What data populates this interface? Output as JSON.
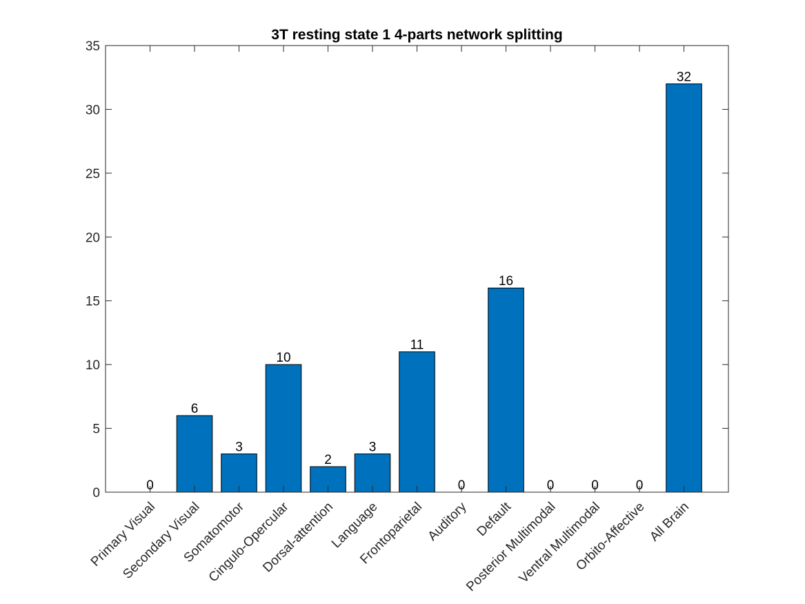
{
  "chart_data": {
    "type": "bar",
    "title": "3T resting state 1 4-parts network splitting",
    "xlabel": "",
    "ylabel": "",
    "categories": [
      "Primary Visual",
      "Secondary Visual",
      "Somatomotor",
      "Cingulo-Opercular",
      "Dorsal-attention",
      "Language",
      "Frontoparietal",
      "Auditory",
      "Default",
      "Posterior Multimodal",
      "Ventral Multimodal",
      "Orbito-Affective",
      "All Brain"
    ],
    "values": [
      0,
      6,
      3,
      10,
      2,
      3,
      11,
      0,
      16,
      0,
      0,
      0,
      32
    ],
    "data_labels": [
      "0",
      "6",
      "3",
      "10",
      "2",
      "3",
      "11",
      "0",
      "16",
      "0",
      "0",
      "0",
      "32"
    ],
    "ylim": [
      0,
      35
    ],
    "yticks": [
      0,
      5,
      10,
      15,
      20,
      25,
      30,
      35
    ],
    "ytick_labels": [
      "0",
      "5",
      "10",
      "15",
      "20",
      "25",
      "30",
      "35"
    ],
    "bar_color": "#0072BD",
    "grid": false,
    "legend": "none"
  }
}
